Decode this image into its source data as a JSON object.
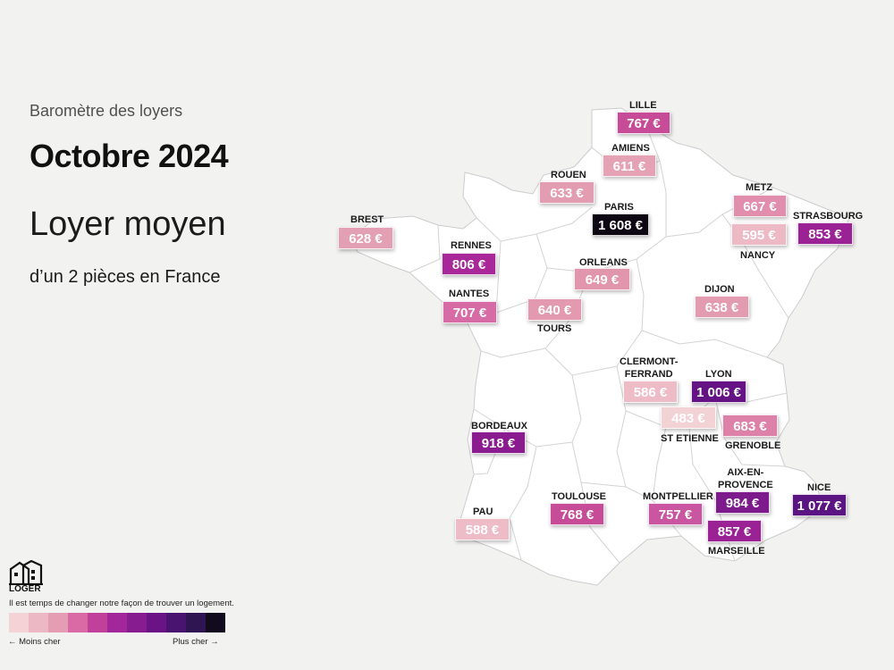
{
  "header": {
    "subtitle": "Baromètre des loyers",
    "title": "Octobre 2024",
    "headline": "Loyer moyen",
    "description": "d’un 2 pièces en France"
  },
  "map": {
    "land_color": "#ffffff",
    "border_color": "#cccccc",
    "cities": [
      {
        "id": "lille",
        "name": "LILLE",
        "price": "767 €",
        "color": "#c74c98"
      },
      {
        "id": "amiens",
        "name": "AMIENS",
        "price": "611 €",
        "color": "#e4a2b4"
      },
      {
        "id": "rouen",
        "name": "ROUEN",
        "price": "633 €",
        "color": "#e39db2"
      },
      {
        "id": "paris",
        "name": "PARIS",
        "price": "1 608 €",
        "color": "#0c0712"
      },
      {
        "id": "metz",
        "name": "METZ",
        "price": "667 €",
        "color": "#e08eab"
      },
      {
        "id": "nancy",
        "name": "NANCY",
        "price": "595 €",
        "color": "#edb9c4"
      },
      {
        "id": "strasbourg",
        "name": "STRASBOURG",
        "price": "853 €",
        "color": "#9a2294"
      },
      {
        "id": "brest",
        "name": "BREST",
        "price": "628 €",
        "color": "#e39fb3"
      },
      {
        "id": "rennes",
        "name": "RENNES",
        "price": "806 €",
        "color": "#a8289a"
      },
      {
        "id": "orleans",
        "name": "ORLEANS",
        "price": "649 €",
        "color": "#e296ae"
      },
      {
        "id": "nantes",
        "name": "NANTES",
        "price": "707 €",
        "color": "#d66ba5"
      },
      {
        "id": "tours",
        "name": "TOURS",
        "price": "640 €",
        "color": "#e39ab0"
      },
      {
        "id": "dijon",
        "name": "DIJON",
        "price": "638 €",
        "color": "#e39bb0"
      },
      {
        "id": "clermont",
        "name": "CLERMONT-\nFERRAND",
        "price": "586 €",
        "color": "#eebcc7"
      },
      {
        "id": "lyon",
        "name": "LYON",
        "price": "1 006 €",
        "color": "#651284"
      },
      {
        "id": "stetienne",
        "name": "ST ETIENNE",
        "price": "483 €",
        "color": "#f3d2d6"
      },
      {
        "id": "grenoble",
        "name": "GRENOBLE",
        "price": "683 €",
        "color": "#dd81a8"
      },
      {
        "id": "bordeaux",
        "name": "BORDEAUX",
        "price": "918 €",
        "color": "#8a1c90"
      },
      {
        "id": "aix",
        "name": "AIX-EN-\nPROVENCE",
        "price": "984 €",
        "color": "#7d1a8c"
      },
      {
        "id": "nice",
        "name": "NICE",
        "price": "1 077 €",
        "color": "#5b1582"
      },
      {
        "id": "pau",
        "name": "PAU",
        "price": "588 €",
        "color": "#eebcc7"
      },
      {
        "id": "toulouse",
        "name": "TOULOUSE",
        "price": "768 €",
        "color": "#c74c98"
      },
      {
        "id": "montpellier",
        "name": "MONTPELLIER",
        "price": "757 €",
        "color": "#ca55a0"
      },
      {
        "id": "marseille",
        "name": "MARSEILLE",
        "price": "857 €",
        "color": "#9a2294"
      }
    ]
  },
  "brand": {
    "logo_text": "LOGER",
    "tagline": "Il est temps de changer notre façon de trouver un logement."
  },
  "legend": {
    "low_label": "← Moins cher",
    "high_label": "Plus cher →",
    "colors": [
      "#f4d3d7",
      "#ecb8c4",
      "#e49db2",
      "#d96aa6",
      "#c0409a",
      "#a2279a",
      "#861c90",
      "#6a1386",
      "#481470",
      "#2f1653",
      "#120b1d"
    ]
  }
}
